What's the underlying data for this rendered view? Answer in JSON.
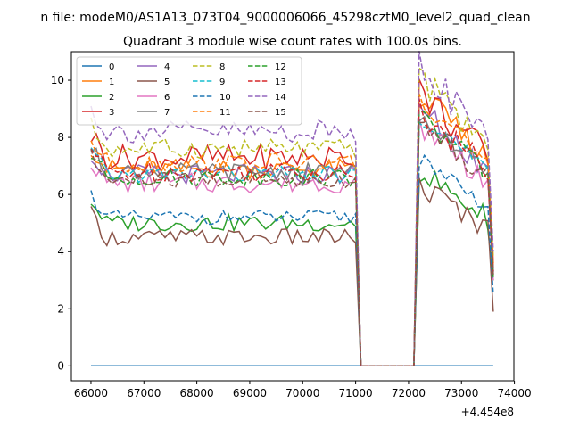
{
  "chart_data": {
    "type": "line",
    "suptitle": "n file: modeM0/AS1A13_073T04_9000006066_45298cztM0_level2_quad_clean",
    "title": "Quadrant 3 module wise count rates with 100.0s bins.",
    "xlabel": "",
    "ylabel": "",
    "x_offset_label": "+4.454e8",
    "xlim": [
      65630,
      73990
    ],
    "ylim": [
      -0.52,
      11.0
    ],
    "xticks": [
      66000,
      67000,
      68000,
      69000,
      70000,
      71000,
      72000,
      73000,
      74000
    ],
    "yticks": [
      0,
      2,
      4,
      6,
      8,
      10
    ],
    "grid": false,
    "legend": {
      "placement": "top-left",
      "columns": 4
    },
    "gap": {
      "start": 71100,
      "end": 72100
    },
    "segment1": {
      "start": 66000,
      "end": 71000,
      "step": 100
    },
    "segment2": {
      "start": 72200,
      "end": 73600,
      "step": 100
    },
    "series": [
      {
        "name": "0",
        "color": "#1f77b4",
        "dash": false,
        "level1": 0,
        "level2": 0,
        "amp": 0,
        "end": 0
      },
      {
        "name": "1",
        "color": "#ff7f0e",
        "dash": false,
        "level1": 6.9,
        "level2": 7.8,
        "amp": 0.35,
        "end": 3.4
      },
      {
        "name": "2",
        "color": "#2ca02c",
        "dash": false,
        "level1": 5.0,
        "level2": 5.6,
        "amp": 0.3,
        "end": 3.0
      },
      {
        "name": "3",
        "color": "#d62728",
        "dash": false,
        "level1": 7.3,
        "level2": 7.9,
        "amp": 0.45,
        "end": 3.6
      },
      {
        "name": "4",
        "color": "#9467bd",
        "dash": false,
        "level1": 6.7,
        "level2": 7.4,
        "amp": 0.35,
        "end": 3.3
      },
      {
        "name": "5",
        "color": "#8c564b",
        "dash": false,
        "level1": 4.5,
        "level2": 5.2,
        "amp": 0.3,
        "end": 1.9
      },
      {
        "name": "6",
        "color": "#e377c2",
        "dash": false,
        "level1": 6.4,
        "level2": 7.0,
        "amp": 0.35,
        "end": 3.0
      },
      {
        "name": "7",
        "color": "#7f7f7f",
        "dash": false,
        "level1": 6.8,
        "level2": 7.2,
        "amp": 0.3,
        "end": 3.2
      },
      {
        "name": "8",
        "color": "#bcbd22",
        "dash": true,
        "level1": 7.6,
        "level2": 8.3,
        "amp": 0.35,
        "end": 3.8
      },
      {
        "name": "9",
        "color": "#17becf",
        "dash": true,
        "level1": 6.7,
        "level2": 7.3,
        "amp": 0.3,
        "end": 3.3
      },
      {
        "name": "10",
        "color": "#1f77b4",
        "dash": true,
        "level1": 5.2,
        "level2": 5.9,
        "amp": 0.25,
        "end": 2.5
      },
      {
        "name": "11",
        "color": "#ff7f0e",
        "dash": true,
        "level1": 7.1,
        "level2": 7.8,
        "amp": 0.35,
        "end": 3.5
      },
      {
        "name": "12",
        "color": "#2ca02c",
        "dash": true,
        "level1": 6.6,
        "level2": 7.2,
        "amp": 0.3,
        "end": 3.1
      },
      {
        "name": "13",
        "color": "#d62728",
        "dash": true,
        "level1": 6.8,
        "level2": 7.4,
        "amp": 0.35,
        "end": 3.3
      },
      {
        "name": "14",
        "color": "#9467bd",
        "dash": true,
        "level1": 8.2,
        "level2": 8.6,
        "amp": 0.4,
        "end": 4.0
      },
      {
        "name": "15",
        "color": "#8c564b",
        "dash": true,
        "level1": 6.5,
        "level2": 7.1,
        "amp": 0.3,
        "end": 3.2
      }
    ]
  }
}
